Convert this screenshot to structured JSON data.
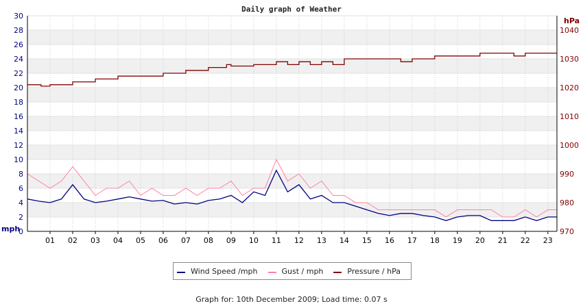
{
  "chart_data": {
    "type": "line",
    "title": "Daily graph of Weather",
    "x_tick_labels": [
      "01",
      "02",
      "03",
      "04",
      "05",
      "06",
      "07",
      "08",
      "09",
      "10",
      "11",
      "12",
      "13",
      "14",
      "15",
      "16",
      "17",
      "18",
      "19",
      "20",
      "21",
      "22",
      "23"
    ],
    "x_range_hours": [
      0,
      23.4
    ],
    "left_axis": {
      "unit": "mph",
      "ylim": [
        0,
        30
      ],
      "ticks": [
        0,
        2,
        4,
        6,
        8,
        10,
        12,
        14,
        16,
        18,
        20,
        22,
        24,
        26,
        28,
        30
      ],
      "color": "#000080"
    },
    "right_axis": {
      "unit": "hPa",
      "ylim": [
        970,
        1045
      ],
      "ticks": [
        970,
        980,
        990,
        1000,
        1010,
        1020,
        1030,
        1040
      ],
      "color": "#800000"
    },
    "grid": true,
    "legend_position": "bottom-center",
    "series": [
      {
        "name": "Wind Speed /mph",
        "axis": "left",
        "color": "#000080",
        "x": [
          0,
          0.5,
          1,
          1.5,
          2,
          2.5,
          3,
          3.5,
          4,
          4.5,
          5,
          5.5,
          6,
          6.5,
          7,
          7.5,
          8,
          8.5,
          9,
          9.5,
          10,
          10.5,
          11,
          11.5,
          12,
          12.5,
          13,
          13.5,
          14,
          14.5,
          15,
          15.5,
          16,
          16.5,
          17,
          17.5,
          18,
          18.5,
          19,
          19.5,
          20,
          20.5,
          21,
          21.5,
          22,
          22.5,
          23,
          23.4
        ],
        "y": [
          4.5,
          4.2,
          4.0,
          4.5,
          6.5,
          4.5,
          4.0,
          4.2,
          4.5,
          4.8,
          4.5,
          4.2,
          4.3,
          3.8,
          4.0,
          3.8,
          4.3,
          4.5,
          5.0,
          4.0,
          5.5,
          5.0,
          8.5,
          5.5,
          6.5,
          4.5,
          5.0,
          4.0,
          4.0,
          3.5,
          3.0,
          2.5,
          2.2,
          2.5,
          2.5,
          2.2,
          2.0,
          1.5,
          2.0,
          2.2,
          2.2,
          1.5,
          1.5,
          1.5,
          2.0,
          1.5,
          2.0,
          2.0
        ]
      },
      {
        "name": "Gust / mph",
        "axis": "left",
        "color": "#ff80a0",
        "x": [
          0,
          0.5,
          1,
          1.5,
          2,
          2.5,
          3,
          3.5,
          4,
          4.5,
          5,
          5.5,
          6,
          6.5,
          7,
          7.5,
          8,
          8.5,
          9,
          9.5,
          10,
          10.5,
          11,
          11.5,
          12,
          12.5,
          13,
          13.5,
          14,
          14.5,
          15,
          15.5,
          16,
          16.5,
          17,
          17.5,
          18,
          18.5,
          19,
          19.5,
          20,
          20.5,
          21,
          21.5,
          22,
          22.5,
          23,
          23.4
        ],
        "y": [
          8,
          7,
          6,
          7,
          9,
          7,
          5,
          6,
          6,
          7,
          5,
          6,
          5,
          5,
          6,
          5,
          6,
          6,
          7,
          5,
          6,
          6,
          10,
          7,
          8,
          6,
          7,
          5,
          5,
          4,
          4,
          3,
          3,
          3,
          3,
          3,
          3,
          2,
          3,
          3,
          3,
          3,
          2,
          2,
          3,
          2,
          3,
          3
        ]
      },
      {
        "name": "Pressure / hPa",
        "axis": "right",
        "color": "#800000",
        "x": [
          0,
          0.3,
          0.6,
          1,
          2,
          3,
          4,
          5,
          6,
          7,
          8,
          8.8,
          9,
          9.5,
          10,
          11,
          11.5,
          12,
          12.5,
          13,
          13.5,
          14,
          15,
          16,
          16.5,
          17,
          18,
          19,
          20,
          21,
          21.5,
          22,
          23,
          23.4
        ],
        "y": [
          1021,
          1021,
          1020.5,
          1021,
          1022,
          1023,
          1024,
          1024,
          1025,
          1026,
          1027,
          1028,
          1027.5,
          1027.5,
          1028,
          1029,
          1028,
          1029,
          1028,
          1029,
          1028,
          1030,
          1030,
          1030,
          1029,
          1030,
          1031,
          1031,
          1032,
          1032,
          1031,
          1032,
          1032,
          1032
        ]
      }
    ]
  },
  "footer": {
    "text": "Graph for: 10th December 2009; Load time: 0.07 s"
  }
}
